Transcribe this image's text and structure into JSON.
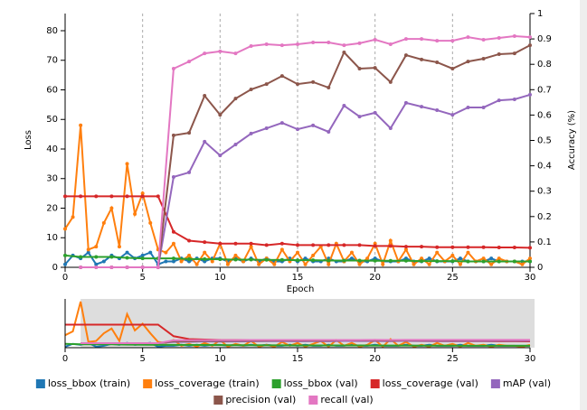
{
  "chart_data": {
    "type": "line",
    "xlabel": "Epoch",
    "ylabel": "Loss",
    "y2label": "Accuracy (%)",
    "xlim": [
      0,
      30
    ],
    "xticks": [
      0,
      5,
      10,
      15,
      20,
      25,
      30
    ],
    "ylim": [
      0,
      85.8
    ],
    "yticks": [
      0,
      10,
      20,
      30,
      40,
      50,
      60,
      70,
      80
    ],
    "y2lim": [
      0,
      1
    ],
    "y2ticks": [
      0,
      0.1,
      0.2,
      0.3,
      0.4,
      0.5,
      0.6,
      0.7,
      0.8,
      0.9,
      1
    ],
    "grid": "x",
    "brush": [
      1,
      30
    ],
    "series": [
      {
        "name": "loss_bbox (train)",
        "color": "#1f77b4",
        "x": [
          0,
          0.5,
          1,
          1.5,
          2,
          2.5,
          3,
          3.5,
          4,
          4.5,
          5,
          5.5,
          6,
          6.5,
          7,
          7.5,
          8,
          8.5,
          9,
          9.5,
          10,
          10.5,
          11,
          11.5,
          12,
          12.5,
          13,
          13.5,
          14,
          14.5,
          15,
          15.5,
          16,
          16.5,
          17,
          17.5,
          18,
          18.5,
          19,
          19.5,
          20,
          20.5,
          21,
          21.5,
          22,
          22.5,
          23,
          23.5,
          24,
          24.5,
          25,
          25.5,
          26,
          26.5,
          27,
          27.5,
          28,
          28.5,
          29,
          29.5,
          30
        ],
        "values": [
          1,
          4,
          3,
          5,
          1,
          2,
          4,
          3,
          5,
          3,
          4,
          5,
          1,
          2,
          2,
          3,
          2,
          3,
          2,
          3,
          3,
          2,
          3,
          2,
          3,
          2,
          3,
          2,
          2,
          3,
          2,
          3,
          2,
          2,
          3,
          2,
          2,
          3,
          2,
          2,
          3,
          2,
          2,
          2,
          3,
          2,
          2,
          3,
          2,
          2,
          2,
          3,
          2,
          2,
          2,
          3,
          2,
          2,
          2,
          2,
          2
        ]
      },
      {
        "name": "loss_coverage (train)",
        "color": "#ff7f0e",
        "x": [
          0,
          0.5,
          1,
          1.5,
          2,
          2.5,
          3,
          3.5,
          4,
          4.5,
          5,
          5.5,
          6,
          6.5,
          7,
          7.5,
          8,
          8.5,
          9,
          9.5,
          10,
          10.5,
          11,
          11.5,
          12,
          12.5,
          13,
          13.5,
          14,
          14.5,
          15,
          15.5,
          16,
          16.5,
          17,
          17.5,
          18,
          18.5,
          19,
          19.5,
          20,
          20.5,
          21,
          21.5,
          22,
          22.5,
          23,
          23.5,
          24,
          24.5,
          25,
          25.5,
          26,
          26.5,
          27,
          27.5,
          28,
          28.5,
          29,
          29.5,
          30
        ],
        "values": [
          13,
          17,
          48,
          6,
          7,
          15,
          20,
          7,
          35,
          18,
          25,
          15,
          6,
          5,
          8,
          2,
          4,
          1,
          5,
          2,
          8,
          1,
          4,
          2,
          7,
          1,
          3,
          1,
          6,
          2,
          5,
          1,
          4,
          7,
          1,
          8,
          2,
          5,
          1,
          3,
          8,
          1,
          9,
          2,
          6,
          1,
          3,
          1,
          5,
          2,
          4,
          1,
          5,
          2,
          3,
          1,
          3,
          2,
          2,
          1,
          3
        ]
      },
      {
        "name": "loss_bbox (val)",
        "color": "#2ca02c",
        "x": [
          0,
          1,
          2,
          3,
          4,
          5,
          6,
          7,
          8,
          9,
          10,
          11,
          12,
          13,
          14,
          15,
          16,
          17,
          18,
          19,
          20,
          21,
          22,
          23,
          24,
          25,
          26,
          27,
          28,
          29,
          30
        ],
        "values": [
          4,
          3.5,
          3.5,
          3.5,
          3.2,
          3,
          3,
          3,
          2.8,
          2.8,
          2.7,
          2.6,
          2.6,
          2.5,
          2.5,
          2.4,
          2.4,
          2.3,
          2.3,
          2.3,
          2.2,
          2.2,
          2.2,
          2.1,
          2.1,
          2.1,
          2,
          2,
          2,
          2,
          2
        ]
      },
      {
        "name": "loss_coverage (val)",
        "color": "#d62728",
        "x": [
          0,
          1,
          2,
          3,
          4,
          5,
          6,
          7,
          8,
          9,
          10,
          11,
          12,
          13,
          14,
          15,
          16,
          17,
          18,
          19,
          20,
          21,
          22,
          23,
          24,
          25,
          26,
          27,
          28,
          29,
          30
        ],
        "values": [
          24,
          24,
          24,
          24,
          24,
          24,
          24,
          12,
          9,
          8.5,
          8,
          8,
          8,
          7.5,
          8,
          7.5,
          7.5,
          7.5,
          7.5,
          7.5,
          7.2,
          7.2,
          7,
          7,
          6.8,
          6.8,
          6.8,
          6.8,
          6.7,
          6.7,
          6.6
        ]
      },
      {
        "name": "mAP (val)",
        "color": "#9467bd",
        "axis": "y2",
        "x": [
          1,
          2,
          3,
          4,
          5,
          6,
          7,
          8,
          9,
          10,
          11,
          12,
          13,
          14,
          15,
          16,
          17,
          18,
          19,
          20,
          21,
          22,
          23,
          24,
          25,
          26,
          27,
          28,
          29,
          30
        ],
        "values": [
          0,
          0,
          0,
          0,
          0,
          0,
          0.356,
          0.374,
          0.495,
          0.441,
          0.484,
          0.527,
          0.548,
          0.569,
          0.544,
          0.559,
          0.534,
          0.637,
          0.594,
          0.609,
          0.548,
          0.648,
          0.633,
          0.619,
          0.601,
          0.63,
          0.63,
          0.658,
          0.662,
          0.68
        ]
      },
      {
        "name": "precision (val)",
        "color": "#8c564b",
        "axis": "y2",
        "x": [
          1,
          2,
          3,
          4,
          5,
          6,
          7,
          8,
          9,
          10,
          11,
          12,
          13,
          14,
          15,
          16,
          17,
          18,
          19,
          20,
          21,
          22,
          23,
          24,
          25,
          26,
          27,
          28,
          29,
          30
        ],
        "values": [
          0,
          0,
          0,
          0,
          0,
          0,
          0.52,
          0.53,
          0.676,
          0.601,
          0.665,
          0.701,
          0.722,
          0.754,
          0.722,
          0.73,
          0.708,
          0.847,
          0.783,
          0.786,
          0.73,
          0.836,
          0.819,
          0.808,
          0.783,
          0.811,
          0.822,
          0.84,
          0.843,
          0.875
        ]
      },
      {
        "name": "recall (val)",
        "color": "#e377c2",
        "axis": "y2",
        "x": [
          1,
          2,
          3,
          4,
          5,
          6,
          7,
          8,
          9,
          10,
          11,
          12,
          13,
          14,
          15,
          16,
          17,
          18,
          19,
          20,
          21,
          22,
          23,
          24,
          25,
          26,
          27,
          28,
          29,
          30
        ],
        "values": [
          0,
          0,
          0,
          0,
          0,
          0,
          0.783,
          0.811,
          0.843,
          0.851,
          0.843,
          0.872,
          0.879,
          0.875,
          0.879,
          0.886,
          0.886,
          0.875,
          0.883,
          0.897,
          0.879,
          0.9,
          0.9,
          0.893,
          0.893,
          0.907,
          0.897,
          0.904,
          0.911,
          0.907
        ]
      }
    ]
  }
}
